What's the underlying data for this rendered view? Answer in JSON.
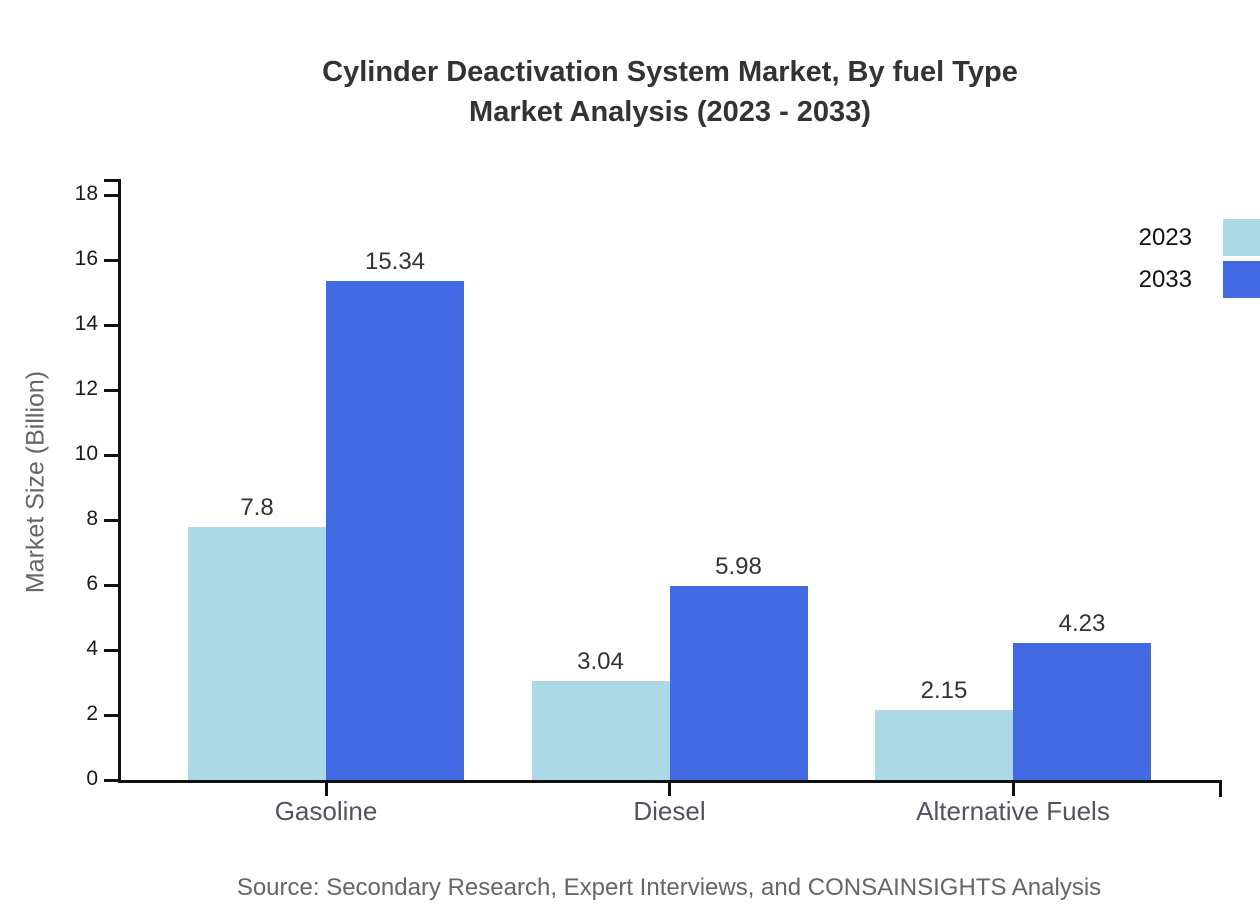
{
  "chart": {
    "title_line1": "Cylinder Deactivation System Market, By fuel Type",
    "title_line2": "Market Analysis (2023 - 2033)",
    "source": "Source: Secondary Research, Expert Interviews, and CONSAINSIGHTS Analysis"
  },
  "chart_data": {
    "type": "bar",
    "title": "Cylinder Deactivation System Market, By fuel Type Market Analysis (2023 - 2033)",
    "categories": [
      "Gasoline",
      "Diesel",
      "Alternative Fuels"
    ],
    "series": [
      {
        "name": "2023",
        "color": "#ADD8E6",
        "values": [
          7.8,
          3.04,
          2.15
        ]
      },
      {
        "name": "2033",
        "color": "#4169E1",
        "values": [
          15.34,
          5.98,
          4.23
        ]
      }
    ],
    "value_labels": {
      "Gasoline": [
        "7.8",
        "15.34"
      ],
      "Diesel": [
        "3.04",
        "5.98"
      ],
      "Alternative Fuels": [
        "2.15",
        "4.23"
      ]
    },
    "xlabel": "",
    "ylabel": "Market Size (Billion)",
    "ylim": [
      0,
      18
    ],
    "yticks": [
      0,
      2,
      4,
      6,
      8,
      10,
      12,
      14,
      16,
      18
    ],
    "legend_position": "top-right",
    "grid": false,
    "axis_color": "#111111",
    "background_color": "#ffffff"
  }
}
